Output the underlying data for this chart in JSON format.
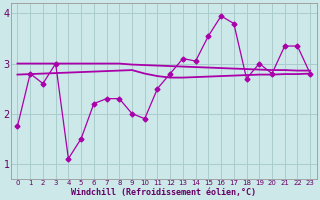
{
  "x": [
    0,
    1,
    2,
    3,
    4,
    5,
    6,
    7,
    8,
    9,
    10,
    11,
    12,
    13,
    14,
    15,
    16,
    17,
    18,
    19,
    20,
    21,
    22,
    23
  ],
  "y_main": [
    1.75,
    2.8,
    2.6,
    3.0,
    1.1,
    1.5,
    2.2,
    2.3,
    2.3,
    2.0,
    1.9,
    2.5,
    2.8,
    3.1,
    3.05,
    3.55,
    3.95,
    3.8,
    2.7,
    3.0,
    2.8,
    3.35,
    3.35,
    2.8
  ],
  "y_line1": [
    3.0,
    3.0,
    3.0,
    3.0,
    3.0,
    3.0,
    3.0,
    3.0,
    3.0,
    2.98,
    2.97,
    2.96,
    2.95,
    2.94,
    2.93,
    2.92,
    2.91,
    2.9,
    2.89,
    2.88,
    2.87,
    2.87,
    2.86,
    2.86
  ],
  "y_line2": [
    2.78,
    2.79,
    2.8,
    2.81,
    2.82,
    2.83,
    2.84,
    2.85,
    2.86,
    2.87,
    2.8,
    2.75,
    2.72,
    2.72,
    2.73,
    2.74,
    2.75,
    2.76,
    2.77,
    2.78,
    2.78,
    2.79,
    2.79,
    2.8
  ],
  "line_color": "#aa00aa",
  "bg_color": "#cce8e8",
  "grid_color": "#aacccc",
  "axis_color": "#888888",
  "text_color": "#660066",
  "xlabel": "Windchill (Refroidissement éolien,°C)",
  "ylim": [
    0.7,
    4.2
  ],
  "xlim": [
    -0.5,
    23.5
  ],
  "yticks": [
    1,
    2,
    3,
    4
  ],
  "xticks": [
    0,
    1,
    2,
    3,
    4,
    5,
    6,
    7,
    8,
    9,
    10,
    11,
    12,
    13,
    14,
    15,
    16,
    17,
    18,
    19,
    20,
    21,
    22,
    23
  ]
}
